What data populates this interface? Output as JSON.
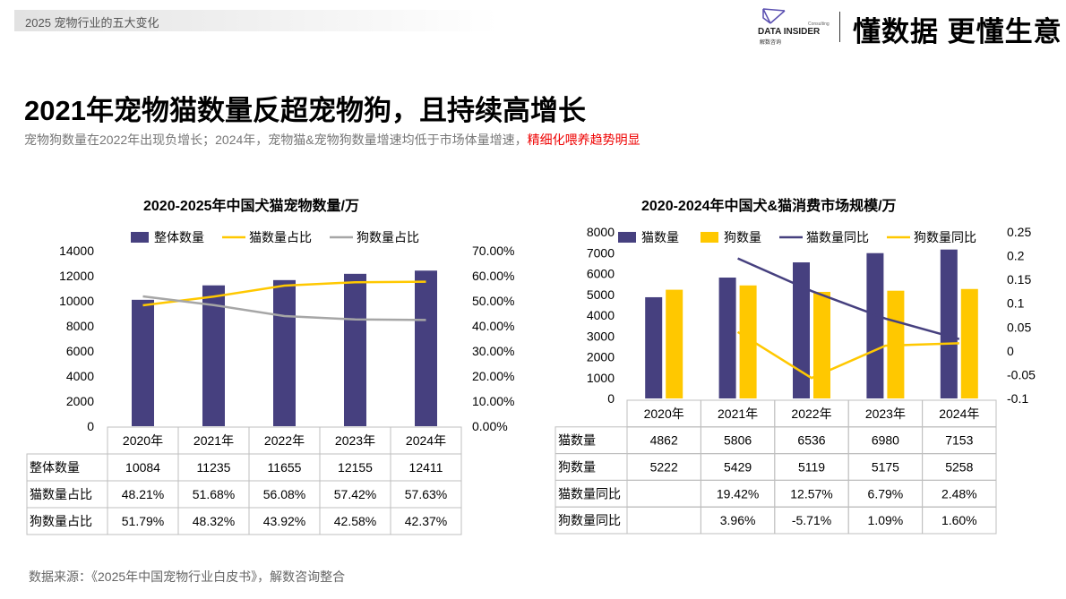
{
  "header": {
    "breadcrumb": "2025  宠物行业的五大变化",
    "logo_text": "DATA INSIDER",
    "logo_sub": "解数咨询",
    "logo_consulting": "Consulting",
    "slogan": "懂数据 更懂生意"
  },
  "title": "2021年宠物猫数量反超宠物狗，且持续高增长",
  "subtitle": "宠物狗数量在2022年出现负增长；2024年，宠物猫&宠物狗数量增速均低于市场体量增速，",
  "subtitle_highlight": "精细化喂养趋势明显",
  "source": "数据来源：《2025年中国宠物行业白皮书》，解数咨询整合",
  "colors": {
    "navy": "#46407f",
    "yellow": "#ffc800",
    "gray": "#a6a6a6",
    "highlight": "#ee0000"
  },
  "chart_data": [
    {
      "type": "bar+line",
      "title": "2020-2025年中国犬猫宠物数量/万",
      "categories": [
        "2020年",
        "2021年",
        "2022年",
        "2023年",
        "2024年"
      ],
      "y_left": {
        "range": [
          0,
          14000
        ],
        "ticks": [
          "0",
          "2000",
          "4000",
          "6000",
          "8000",
          "10000",
          "12000",
          "14000"
        ]
      },
      "y_right": {
        "range": [
          0,
          0.7
        ],
        "ticks": [
          "0.00%",
          "10.00%",
          "20.00%",
          "30.00%",
          "40.00%",
          "50.00%",
          "60.00%",
          "70.00%"
        ]
      },
      "series": [
        {
          "name": "整体数量",
          "kind": "bar",
          "axis": "left",
          "values": [
            10084,
            11235,
            11655,
            12155,
            12411
          ],
          "labels": [
            "10084",
            "11235",
            "11655",
            "12155",
            "12411"
          ]
        },
        {
          "name": "猫数量占比",
          "kind": "line",
          "axis": "right",
          "values": [
            0.4821,
            0.5168,
            0.5608,
            0.5742,
            0.5763
          ],
          "labels": [
            "48.21%",
            "51.68%",
            "56.08%",
            "57.42%",
            "57.63%"
          ]
        },
        {
          "name": "狗数量占比",
          "kind": "line",
          "axis": "right",
          "values": [
            0.5179,
            0.4832,
            0.4392,
            0.4258,
            0.4237
          ],
          "labels": [
            "51.79%",
            "48.32%",
            "43.92%",
            "42.58%",
            "42.37%"
          ]
        }
      ],
      "legend": "top",
      "data_table": true
    },
    {
      "type": "bar+line",
      "title": "2020-2024年中国犬&猫消费市场规模/万",
      "categories": [
        "2020年",
        "2021年",
        "2022年",
        "2023年",
        "2024年"
      ],
      "y_left": {
        "range": [
          0,
          8000
        ],
        "ticks": [
          "0",
          "1000",
          "2000",
          "3000",
          "4000",
          "5000",
          "6000",
          "7000",
          "8000"
        ]
      },
      "y_right": {
        "range": [
          -0.1,
          0.25
        ],
        "ticks": [
          "-0.1",
          "-0.05",
          "0",
          "0.05",
          "0.1",
          "0.15",
          "0.2",
          "0.25"
        ]
      },
      "series": [
        {
          "name": "猫数量",
          "kind": "bar",
          "axis": "left",
          "values": [
            4862,
            5806,
            6536,
            6980,
            7153
          ],
          "labels": [
            "4862",
            "5806",
            "6536",
            "6980",
            "7153"
          ]
        },
        {
          "name": "狗数量",
          "kind": "bar",
          "axis": "left",
          "values": [
            5222,
            5429,
            5119,
            5175,
            5258
          ],
          "labels": [
            "5222",
            "5429",
            "5119",
            "5175",
            "5258"
          ]
        },
        {
          "name": "猫数量同比",
          "kind": "line",
          "axis": "right",
          "values": [
            null,
            0.1942,
            0.1257,
            0.0679,
            0.0248
          ],
          "labels": [
            "",
            "19.42%",
            "12.57%",
            "6.79%",
            "2.48%"
          ]
        },
        {
          "name": "狗数量同比",
          "kind": "line",
          "axis": "right",
          "values": [
            null,
            0.0396,
            -0.0571,
            0.0109,
            0.016
          ],
          "labels": [
            "",
            "3.96%",
            "-5.71%",
            "1.09%",
            "1.60%"
          ]
        }
      ],
      "legend": "top",
      "data_table": true
    }
  ]
}
